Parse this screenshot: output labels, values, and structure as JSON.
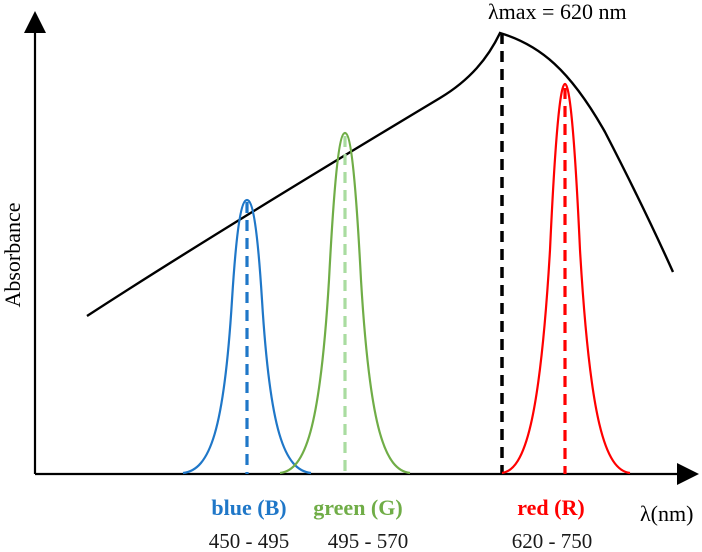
{
  "diagram": {
    "y_axis_label": "Absorbance",
    "x_axis_label": "λ(nm)",
    "peak_annotation": "λmax = 620 nm",
    "colors": {
      "absorbance_curve": "#000000",
      "blue": "#1f77c8",
      "green": "#70ad47",
      "light_green": "#a9dca0",
      "red": "#ff0000"
    },
    "bands": [
      {
        "name": "blue (B)",
        "range": "450 - 495",
        "color": "#1f77c8"
      },
      {
        "name": "green (G)",
        "range": "495 - 570",
        "color": "#70ad47"
      },
      {
        "name": "red (R)",
        "range": "620 - 750",
        "color": "#ff0000"
      }
    ]
  }
}
